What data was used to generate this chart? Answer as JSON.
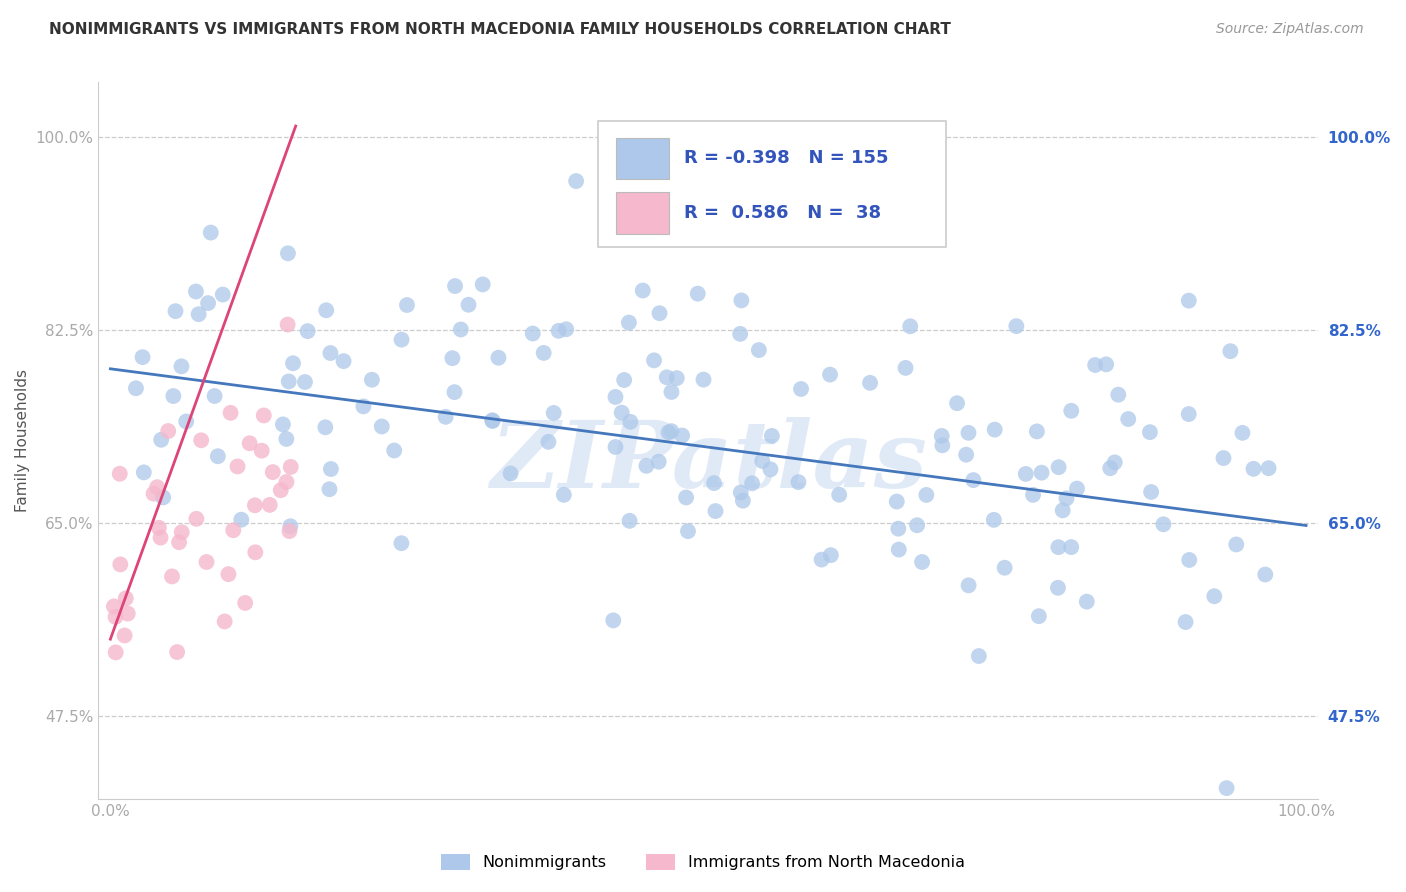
{
  "title": "NONIMMIGRANTS VS IMMIGRANTS FROM NORTH MACEDONIA FAMILY HOUSEHOLDS CORRELATION CHART",
  "source": "Source: ZipAtlas.com",
  "ylabel": "Family Households",
  "xlim": [
    -0.01,
    1.01
  ],
  "ylim": [
    0.4,
    1.05
  ],
  "yticks": [
    0.475,
    0.65,
    0.825,
    1.0
  ],
  "ytick_labels": [
    "47.5%",
    "65.0%",
    "82.5%",
    "100.0%"
  ],
  "xtick_labels": [
    "0.0%",
    "",
    "",
    "",
    "100.0%"
  ],
  "series1_color": "#adc8ea",
  "series1_edge": "#adc8ea",
  "series2_color": "#f5b8cc",
  "series2_edge": "#f5b8cc",
  "line1_color": "#4477bb",
  "line2_color": "#dd4477",
  "R1": -0.398,
  "N1": 155,
  "R2": 0.586,
  "N2": 38,
  "legend1_label": "Nonimmigrants",
  "legend2_label": "Immigrants from North Macedonia",
  "watermark": "ZIPatlas",
  "background_color": "#ffffff",
  "grid_color": "#cccccc",
  "title_color": "#333333",
  "right_label_color": "#3366cc",
  "left_tick_color": "#aaaaaa",
  "legend_text_color": "#3355bb",
  "legend_R_color": "#cc2222",
  "line1_y0": 0.79,
  "line1_y1": 0.648,
  "line2_x0": 0.0,
  "line2_y0": 0.545,
  "line2_x1": 0.155,
  "line2_y1": 1.01
}
